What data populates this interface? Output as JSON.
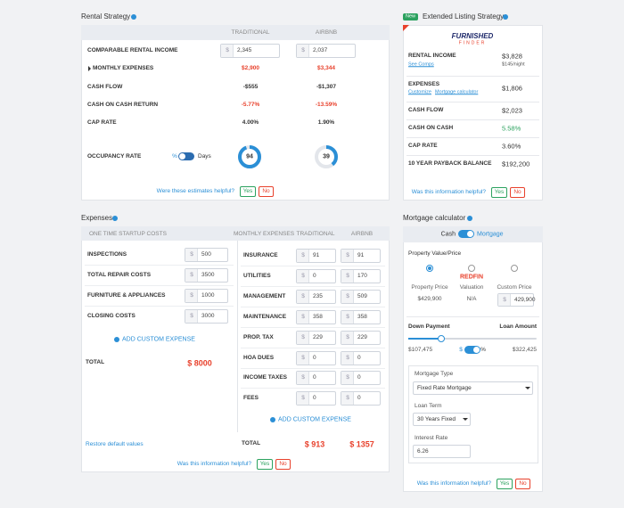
{
  "rental_strategy": {
    "title": "Rental Strategy",
    "columns": [
      "TRADITIONAL",
      "AIRBNB"
    ],
    "currency": "$",
    "rows": [
      {
        "label": "COMPARABLE RENTAL INCOME",
        "values": [
          "2,345",
          "2,037"
        ]
      },
      {
        "label": "MONTHLY EXPENSES",
        "values": [
          "$2,900",
          "$3,344"
        ]
      },
      {
        "label": "CASH FLOW",
        "values": [
          "-$555",
          "-$1,307"
        ]
      },
      {
        "label": "CASH ON CASH RETURN",
        "values": [
          "-5.77%",
          "-13.59%"
        ]
      },
      {
        "label": "CAP RATE",
        "values": [
          "4.00%",
          "1.90%"
        ]
      }
    ],
    "occupancy": {
      "label": "OCCUPANCY RATE",
      "unit_options": [
        "%",
        "Days"
      ],
      "values": [
        94,
        39
      ]
    },
    "feedback": {
      "question": "Were these estimates helpful?",
      "yes": "Yes",
      "no": "No"
    }
  },
  "extended_listing": {
    "badge": "New",
    "title": "Extended Listing Strategy",
    "logo": [
      "FURNISHED",
      "FINDER"
    ],
    "rows": [
      {
        "label": "RENTAL INCOME",
        "value": "$3,828",
        "links": [
          "See Comps"
        ],
        "note": "$145/night"
      },
      {
        "label": "EXPENSES",
        "value": "$1,806",
        "links": [
          "Customize",
          "Mortgage calculator"
        ]
      },
      {
        "label": "CASH FLOW",
        "value": "$2,023"
      },
      {
        "label": "CASH ON CASH",
        "value": "5.58%"
      },
      {
        "label": "CAP RATE",
        "value": "3.60%"
      },
      {
        "label": "10 YEAR PAYBACK BALANCE",
        "value": "$192,200"
      }
    ],
    "feedback": {
      "question": "Was this information helpful?",
      "yes": "Yes",
      "no": "No"
    }
  },
  "expenses": {
    "title": "Expenses",
    "currency": "$",
    "startup": {
      "header": "ONE TIME STARTUP COSTS",
      "rows": [
        {
          "label": "INSPECTIONS",
          "value": "500"
        },
        {
          "label": "TOTAL REPAIR COSTS",
          "value": "3500"
        },
        {
          "label": "FURNITURE & APPLIANCES",
          "value": "1000"
        },
        {
          "label": "CLOSING COSTS",
          "value": "3000"
        }
      ],
      "add": "ADD CUSTOM EXPENSE",
      "total_label": "TOTAL",
      "total": "$ 8000",
      "restore": "Restore default values"
    },
    "monthly": {
      "header": "MONTHLY EXPENSES",
      "columns": [
        "TRADITIONAL",
        "AIRBNB"
      ],
      "rows": [
        {
          "label": "INSURANCE",
          "values": [
            "91",
            "91"
          ]
        },
        {
          "label": "UTILITIES",
          "values": [
            "0",
            "170"
          ]
        },
        {
          "label": "MANAGEMENT",
          "values": [
            "235",
            "509"
          ]
        },
        {
          "label": "MAINTENANCE",
          "values": [
            "358",
            "358"
          ]
        },
        {
          "label": "PROP. TAX",
          "values": [
            "229",
            "229"
          ]
        },
        {
          "label": "HOA DUES",
          "values": [
            "0",
            "0"
          ]
        },
        {
          "label": "INCOME TAXES",
          "values": [
            "0",
            "0"
          ]
        },
        {
          "label": "FEES",
          "values": [
            "0",
            "0"
          ]
        }
      ],
      "add": "ADD CUSTOM EXPENSE",
      "total_label": "TOTAL",
      "totals": [
        "$ 913",
        "$ 1357"
      ]
    },
    "feedback": {
      "question": "Was this information helpful?",
      "yes": "Yes",
      "no": "No"
    }
  },
  "mortgage": {
    "title": "Mortgage calculator",
    "modes": [
      "Cash",
      "Mortgage"
    ],
    "property_label": "Property Value/Price",
    "options": [
      {
        "label": "Property Price",
        "value": "$429,900"
      },
      {
        "logo": "REDFIN",
        "label": "Valuation",
        "value": "N/A"
      },
      {
        "label": "Custom Price",
        "currency": "$",
        "value": "429,900"
      }
    ],
    "down_payment_label": "Down Payment",
    "loan_amount_label": "Loan Amount",
    "down_payment": "$107,475",
    "loan_amount": "$322,425",
    "unit_options": [
      "$",
      "%"
    ],
    "mortgage_type": {
      "label": "Mortgage Type",
      "value": "Fixed Rate Mortgage"
    },
    "loan_term": {
      "label": "Loan Term",
      "value": "30 Years Fixed"
    },
    "interest_rate": {
      "label": "Interest Rate",
      "value": "6.26"
    },
    "feedback": {
      "question": "Was this information helpful?",
      "yes": "Yes",
      "no": "No"
    }
  }
}
